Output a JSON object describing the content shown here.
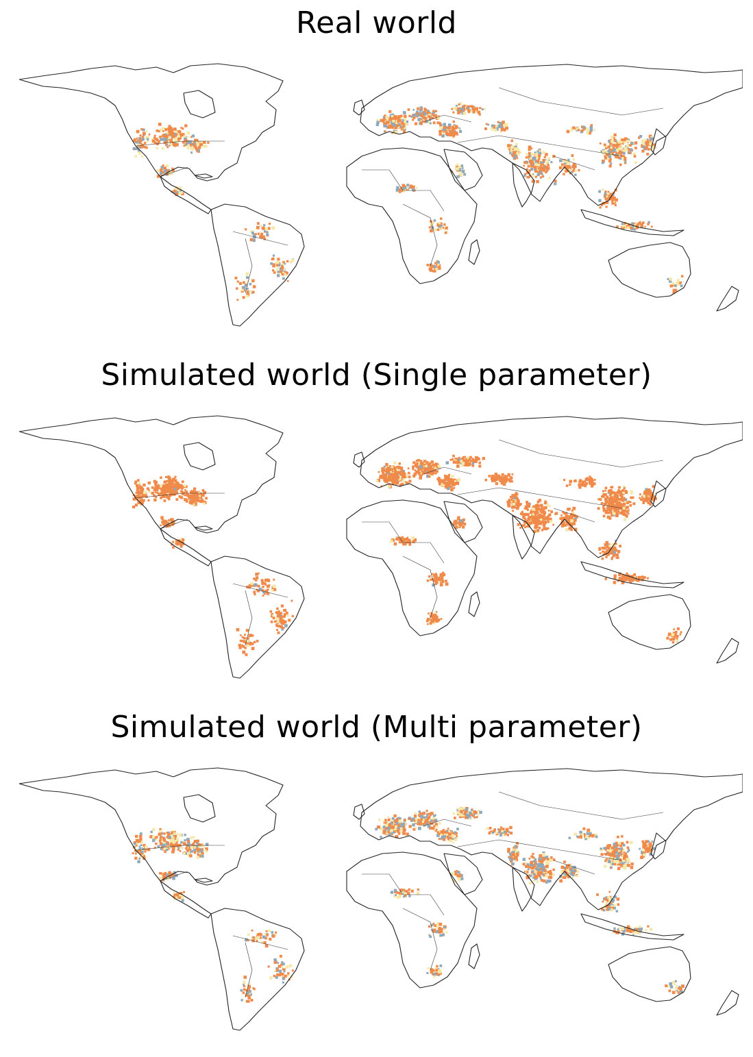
{
  "panels": [
    {
      "title": "Real world",
      "palette_weights": {
        "orange": 0.55,
        "blue": 0.22,
        "yellow": 0.23
      },
      "density": 1.0
    },
    {
      "title": "Simulated world (Single parameter)",
      "palette_weights": {
        "orange": 0.9,
        "blue": 0.03,
        "yellow": 0.07
      },
      "density": 1.35
    },
    {
      "title": "Simulated world (Multi parameter)",
      "palette_weights": {
        "orange": 0.5,
        "blue": 0.24,
        "yellow": 0.26
      },
      "density": 1.05
    }
  ],
  "colors": {
    "orange": "#f08a4b",
    "blue": "#8fa9bb",
    "yellow": "#f6e8a8"
  }
}
